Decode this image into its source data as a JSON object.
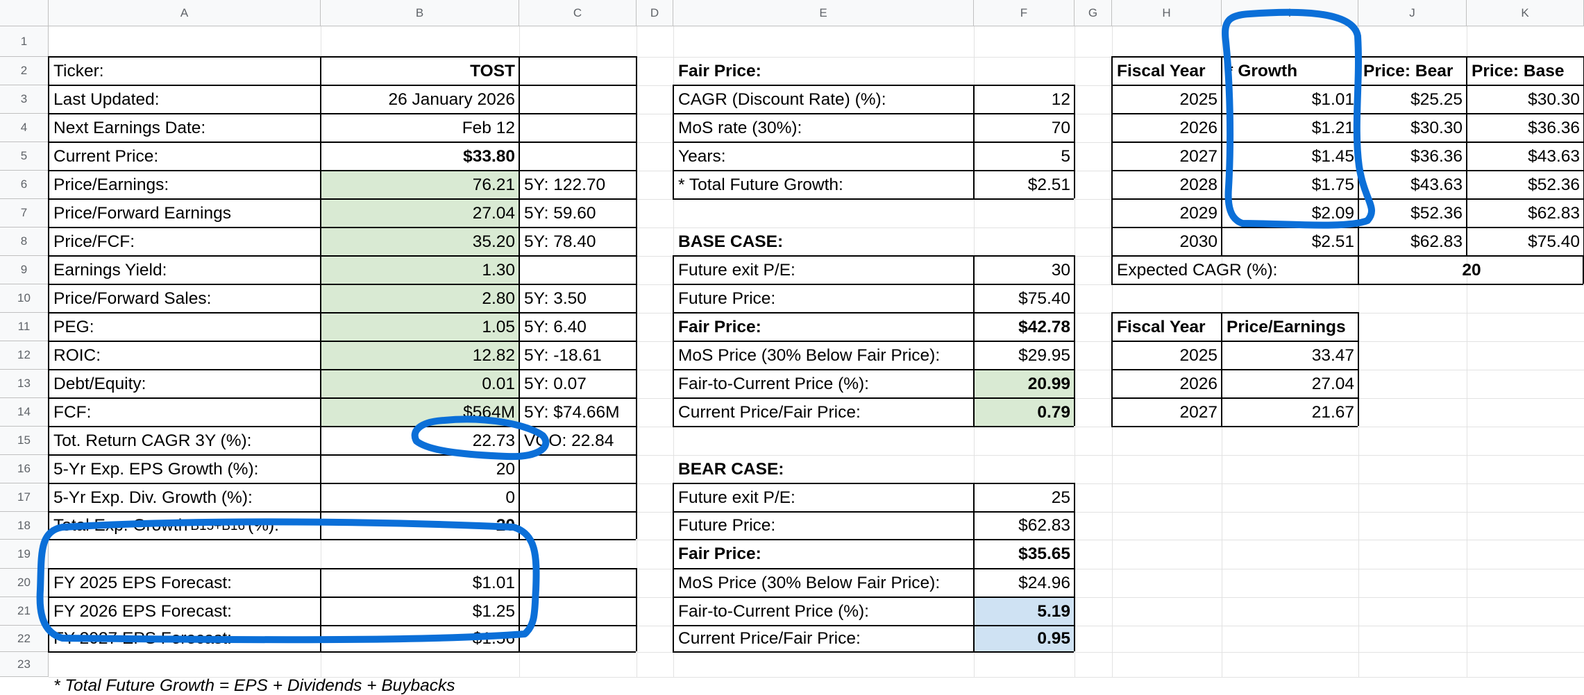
{
  "columns": [
    "A",
    "B",
    "C",
    "D",
    "E",
    "F",
    "G",
    "H",
    "I",
    "J",
    "K"
  ],
  "rows": [
    "1",
    "2",
    "3",
    "4",
    "5",
    "6",
    "7",
    "8",
    "9",
    "10",
    "11",
    "12",
    "13",
    "14",
    "15",
    "16",
    "17",
    "18",
    "19",
    "20",
    "21",
    "22",
    "23"
  ],
  "colors": {
    "green_fill": "#d9ead3",
    "blue_fill": "#cfe2f3",
    "annotation": "#0b6fd8",
    "header_bg": "#f8f9fa"
  },
  "cells": [
    {
      "id": "A1",
      "col": "A",
      "row": 1,
      "text": "Ticker:"
    },
    {
      "id": "B1",
      "col": "B",
      "row": 1,
      "text": "TOST",
      "align": "right",
      "bold": true
    },
    {
      "id": "A2",
      "col": "A",
      "row": 2,
      "text": "Last Updated:"
    },
    {
      "id": "B2",
      "col": "B",
      "row": 2,
      "text": "26 January 2026",
      "align": "right"
    },
    {
      "id": "A3",
      "col": "A",
      "row": 3,
      "text": "Next Earnings Date:"
    },
    {
      "id": "B3",
      "col": "B",
      "row": 3,
      "text": "Feb 12",
      "align": "right"
    },
    {
      "id": "A4",
      "col": "A",
      "row": 4,
      "text": "Current Price:"
    },
    {
      "id": "B4",
      "col": "B",
      "row": 4,
      "text": "$33.80",
      "align": "right",
      "bold": true
    },
    {
      "id": "A5",
      "col": "A",
      "row": 5,
      "text": "Price/Earnings:"
    },
    {
      "id": "B5",
      "col": "B",
      "row": 5,
      "text": "76.21",
      "align": "right",
      "fill": "green"
    },
    {
      "id": "C5",
      "col": "C",
      "row": 5,
      "text": "5Y: 122.70"
    },
    {
      "id": "A6",
      "col": "A",
      "row": 6,
      "text": "Price/Forward Earnings"
    },
    {
      "id": "B6",
      "col": "B",
      "row": 6,
      "text": "27.04",
      "align": "right",
      "fill": "green"
    },
    {
      "id": "C6",
      "col": "C",
      "row": 6,
      "text": "5Y: 59.60"
    },
    {
      "id": "A7",
      "col": "A",
      "row": 7,
      "text": "Price/FCF:"
    },
    {
      "id": "B7",
      "col": "B",
      "row": 7,
      "text": "35.20",
      "align": "right",
      "fill": "green"
    },
    {
      "id": "C7",
      "col": "C",
      "row": 7,
      "text": "5Y: 78.40"
    },
    {
      "id": "A8",
      "col": "A",
      "row": 8,
      "text": "Earnings Yield:"
    },
    {
      "id": "B8",
      "col": "B",
      "row": 8,
      "text": "1.30",
      "align": "right",
      "fill": "green"
    },
    {
      "id": "A9",
      "col": "A",
      "row": 9,
      "text": "Price/Forward Sales:"
    },
    {
      "id": "B9",
      "col": "B",
      "row": 9,
      "text": "2.80",
      "align": "right",
      "fill": "green"
    },
    {
      "id": "C9",
      "col": "C",
      "row": 9,
      "text": "5Y: 3.50"
    },
    {
      "id": "A10",
      "col": "A",
      "row": 10,
      "text": "PEG:"
    },
    {
      "id": "B10",
      "col": "B",
      "row": 10,
      "text": "1.05",
      "align": "right",
      "fill": "green"
    },
    {
      "id": "C10",
      "col": "C",
      "row": 10,
      "text": "5Y: 6.40"
    },
    {
      "id": "A11",
      "col": "A",
      "row": 11,
      "text": "ROIC:"
    },
    {
      "id": "B11",
      "col": "B",
      "row": 11,
      "text": "12.82",
      "align": "right",
      "fill": "green"
    },
    {
      "id": "C11",
      "col": "C",
      "row": 11,
      "text": "5Y: -18.61"
    },
    {
      "id": "A12",
      "col": "A",
      "row": 12,
      "text": "Debt/Equity:"
    },
    {
      "id": "B12",
      "col": "B",
      "row": 12,
      "text": "0.01",
      "align": "right",
      "fill": "green"
    },
    {
      "id": "C12",
      "col": "C",
      "row": 12,
      "text": "5Y: 0.07"
    },
    {
      "id": "A13",
      "col": "A",
      "row": 13,
      "text": "FCF:"
    },
    {
      "id": "B13",
      "col": "B",
      "row": 13,
      "text": "$564M",
      "align": "right",
      "fill": "green"
    },
    {
      "id": "C13",
      "col": "C",
      "row": 13,
      "text": "5Y: $74.66M"
    },
    {
      "id": "A14",
      "col": "A",
      "row": 14,
      "text": "Tot. Return CAGR 3Y (%):"
    },
    {
      "id": "B14",
      "col": "B",
      "row": 14,
      "text": "22.73",
      "align": "right"
    },
    {
      "id": "C14",
      "col": "C",
      "row": 14,
      "text": "VOO: 22.84"
    },
    {
      "id": "A15",
      "col": "A",
      "row": 15,
      "text": "5-Yr Exp. EPS Growth (%):"
    },
    {
      "id": "B15",
      "col": "B",
      "row": 15,
      "text": "20",
      "align": "right"
    },
    {
      "id": "A16",
      "col": "A",
      "row": 16,
      "text": "5-Yr Exp. Div. Growth (%):"
    },
    {
      "id": "B16",
      "col": "B",
      "row": 16,
      "text": "0",
      "align": "right"
    },
    {
      "id": "A17",
      "col": "A",
      "row": 17,
      "text": "Total Exp. Growth",
      "small": "B15+B16",
      "suffix": "(%):"
    },
    {
      "id": "B17",
      "col": "B",
      "row": 17,
      "text": "20",
      "align": "right",
      "bold": true
    },
    {
      "id": "A19",
      "col": "A",
      "row": 19,
      "text": "FY 2025 EPS Forecast:"
    },
    {
      "id": "B19",
      "col": "B",
      "row": 19,
      "text": "$1.01",
      "align": "right"
    },
    {
      "id": "A20",
      "col": "A",
      "row": 20,
      "text": "FY 2026 EPS Forecast:"
    },
    {
      "id": "B20",
      "col": "B",
      "row": 20,
      "text": "$1.25",
      "align": "right"
    },
    {
      "id": "A21",
      "col": "A",
      "row": 21,
      "text": "FY 2027 EPS Forecast:"
    },
    {
      "id": "B21",
      "col": "B",
      "row": 21,
      "text": "$1.56",
      "align": "right"
    },
    {
      "id": "A23",
      "col": "A",
      "row": 23,
      "text": "* Total Future Growth = EPS + Dividends + Buybacks",
      "italic": true
    },
    {
      "id": "E1",
      "col": "E",
      "row": 1,
      "text": "Fair Price:",
      "bold": true
    },
    {
      "id": "E2",
      "col": "E",
      "row": 2,
      "text": "CAGR (Discount Rate) (%):"
    },
    {
      "id": "F2",
      "col": "F",
      "row": 2,
      "text": "12",
      "align": "right"
    },
    {
      "id": "E3",
      "col": "E",
      "row": 3,
      "text": "MoS rate (30%):"
    },
    {
      "id": "F3",
      "col": "F",
      "row": 3,
      "text": "70",
      "align": "right"
    },
    {
      "id": "E4",
      "col": "E",
      "row": 4,
      "text": "Years:"
    },
    {
      "id": "F4",
      "col": "F",
      "row": 4,
      "text": "5",
      "align": "right"
    },
    {
      "id": "E5",
      "col": "E",
      "row": 5,
      "text": "* Total Future Growth:"
    },
    {
      "id": "F5",
      "col": "F",
      "row": 5,
      "text": "$2.51",
      "align": "right"
    },
    {
      "id": "E7",
      "col": "E",
      "row": 7,
      "text": "BASE CASE:",
      "bold": true
    },
    {
      "id": "E8",
      "col": "E",
      "row": 8,
      "text": "Future exit P/E:"
    },
    {
      "id": "F8",
      "col": "F",
      "row": 8,
      "text": "30",
      "align": "right"
    },
    {
      "id": "E9",
      "col": "E",
      "row": 9,
      "text": "Future Price:"
    },
    {
      "id": "F9",
      "col": "F",
      "row": 9,
      "text": "$75.40",
      "align": "right"
    },
    {
      "id": "E10",
      "col": "E",
      "row": 10,
      "text": "Fair Price:",
      "bold": true
    },
    {
      "id": "F10",
      "col": "F",
      "row": 10,
      "text": "$42.78",
      "align": "right",
      "bold": true
    },
    {
      "id": "E11",
      "col": "E",
      "row": 11,
      "text": "MoS Price (30% Below Fair Price):"
    },
    {
      "id": "F11",
      "col": "F",
      "row": 11,
      "text": "$29.95",
      "align": "right"
    },
    {
      "id": "E12",
      "col": "E",
      "row": 12,
      "text": "Fair-to-Current Price (%):"
    },
    {
      "id": "F12",
      "col": "F",
      "row": 12,
      "text": "20.99",
      "align": "right",
      "bold": true,
      "fill": "green"
    },
    {
      "id": "E13",
      "col": "E",
      "row": 13,
      "text": "Current Price/Fair Price:"
    },
    {
      "id": "F13",
      "col": "F",
      "row": 13,
      "text": "0.79",
      "align": "right",
      "bold": true,
      "fill": "green"
    },
    {
      "id": "E15",
      "col": "E",
      "row": 15,
      "text": "BEAR CASE:",
      "bold": true
    },
    {
      "id": "E16",
      "col": "E",
      "row": 16,
      "text": "Future exit P/E:"
    },
    {
      "id": "F16",
      "col": "F",
      "row": 16,
      "text": "25",
      "align": "right"
    },
    {
      "id": "E17",
      "col": "E",
      "row": 17,
      "text": "Future Price:"
    },
    {
      "id": "F17",
      "col": "F",
      "row": 17,
      "text": "$62.83",
      "align": "right"
    },
    {
      "id": "E18",
      "col": "E",
      "row": 18,
      "text": "Fair Price:",
      "bold": true
    },
    {
      "id": "F18",
      "col": "F",
      "row": 18,
      "text": "$35.65",
      "align": "right",
      "bold": true
    },
    {
      "id": "E19",
      "col": "E",
      "row": 19,
      "text": "MoS Price (30% Below Fair Price):"
    },
    {
      "id": "F19",
      "col": "F",
      "row": 19,
      "text": "$24.96",
      "align": "right"
    },
    {
      "id": "E20",
      "col": "E",
      "row": 20,
      "text": "Fair-to-Current Price (%):"
    },
    {
      "id": "F20",
      "col": "F",
      "row": 20,
      "text": "5.19",
      "align": "right",
      "bold": true,
      "fill": "blue"
    },
    {
      "id": "E21",
      "col": "E",
      "row": 21,
      "text": "Current Price/Fair Price:"
    },
    {
      "id": "F21",
      "col": "F",
      "row": 21,
      "text": "0.95",
      "align": "right",
      "bold": true,
      "fill": "blue"
    },
    {
      "id": "H1",
      "col": "H",
      "row": 1,
      "text": "Fiscal Year",
      "bold": true
    },
    {
      "id": "I1",
      "col": "I",
      "row": 1,
      "text": "* Growth",
      "bold": true
    },
    {
      "id": "J1",
      "col": "J",
      "row": 1,
      "text": "Price: Bear",
      "bold": true
    },
    {
      "id": "K1",
      "col": "K",
      "row": 1,
      "text": "Price: Base",
      "bold": true
    },
    {
      "id": "H2",
      "col": "H",
      "row": 2,
      "text": "2025",
      "align": "right"
    },
    {
      "id": "I2",
      "col": "I",
      "row": 2,
      "text": "$1.01",
      "align": "right"
    },
    {
      "id": "J2",
      "col": "J",
      "row": 2,
      "text": "$25.25",
      "align": "right"
    },
    {
      "id": "K2",
      "col": "K",
      "row": 2,
      "text": "$30.30",
      "align": "right"
    },
    {
      "id": "H3",
      "col": "H",
      "row": 3,
      "text": "2026",
      "align": "right"
    },
    {
      "id": "I3",
      "col": "I",
      "row": 3,
      "text": "$1.21",
      "align": "right"
    },
    {
      "id": "J3",
      "col": "J",
      "row": 3,
      "text": "$30.30",
      "align": "right"
    },
    {
      "id": "K3",
      "col": "K",
      "row": 3,
      "text": "$36.36",
      "align": "right"
    },
    {
      "id": "H4",
      "col": "H",
      "row": 4,
      "text": "2027",
      "align": "right"
    },
    {
      "id": "I4",
      "col": "I",
      "row": 4,
      "text": "$1.45",
      "align": "right"
    },
    {
      "id": "J4",
      "col": "J",
      "row": 4,
      "text": "$36.36",
      "align": "right"
    },
    {
      "id": "K4",
      "col": "K",
      "row": 4,
      "text": "$43.63",
      "align": "right"
    },
    {
      "id": "H5",
      "col": "H",
      "row": 5,
      "text": "2028",
      "align": "right"
    },
    {
      "id": "I5",
      "col": "I",
      "row": 5,
      "text": "$1.75",
      "align": "right"
    },
    {
      "id": "J5",
      "col": "J",
      "row": 5,
      "text": "$43.63",
      "align": "right"
    },
    {
      "id": "K5",
      "col": "K",
      "row": 5,
      "text": "$52.36",
      "align": "right"
    },
    {
      "id": "H6",
      "col": "H",
      "row": 6,
      "text": "2029",
      "align": "right"
    },
    {
      "id": "I6",
      "col": "I",
      "row": 6,
      "text": "$2.09",
      "align": "right"
    },
    {
      "id": "J6",
      "col": "J",
      "row": 6,
      "text": "$52.36",
      "align": "right"
    },
    {
      "id": "K6",
      "col": "K",
      "row": 6,
      "text": "$62.83",
      "align": "right"
    },
    {
      "id": "H7",
      "col": "H",
      "row": 7,
      "text": "2030",
      "align": "right"
    },
    {
      "id": "I7",
      "col": "I",
      "row": 7,
      "text": "$2.51",
      "align": "right"
    },
    {
      "id": "J7",
      "col": "J",
      "row": 7,
      "text": "$62.83",
      "align": "right"
    },
    {
      "id": "K7",
      "col": "K",
      "row": 7,
      "text": "$75.40",
      "align": "right"
    },
    {
      "id": "H8",
      "col": "H",
      "row": 8,
      "text": "Expected CAGR (%):"
    },
    {
      "id": "J8",
      "col": "J",
      "row": 8,
      "text": "20",
      "align": "center",
      "bold": true,
      "span": 2
    },
    {
      "id": "H10",
      "col": "H",
      "row": 10,
      "text": "Fiscal Year",
      "bold": true
    },
    {
      "id": "I10",
      "col": "I",
      "row": 10,
      "text": "Price/Earnings",
      "bold": true
    },
    {
      "id": "H11",
      "col": "H",
      "row": 11,
      "text": "2025",
      "align": "right"
    },
    {
      "id": "I11",
      "col": "I",
      "row": 11,
      "text": "33.47",
      "align": "right"
    },
    {
      "id": "H12",
      "col": "H",
      "row": 12,
      "text": "2026",
      "align": "right"
    },
    {
      "id": "I12",
      "col": "I",
      "row": 12,
      "text": "27.04",
      "align": "right"
    },
    {
      "id": "H13",
      "col": "H",
      "row": 13,
      "text": "2027",
      "align": "right"
    },
    {
      "id": "I13",
      "col": "I",
      "row": 13,
      "text": "21.67",
      "align": "right"
    }
  ]
}
